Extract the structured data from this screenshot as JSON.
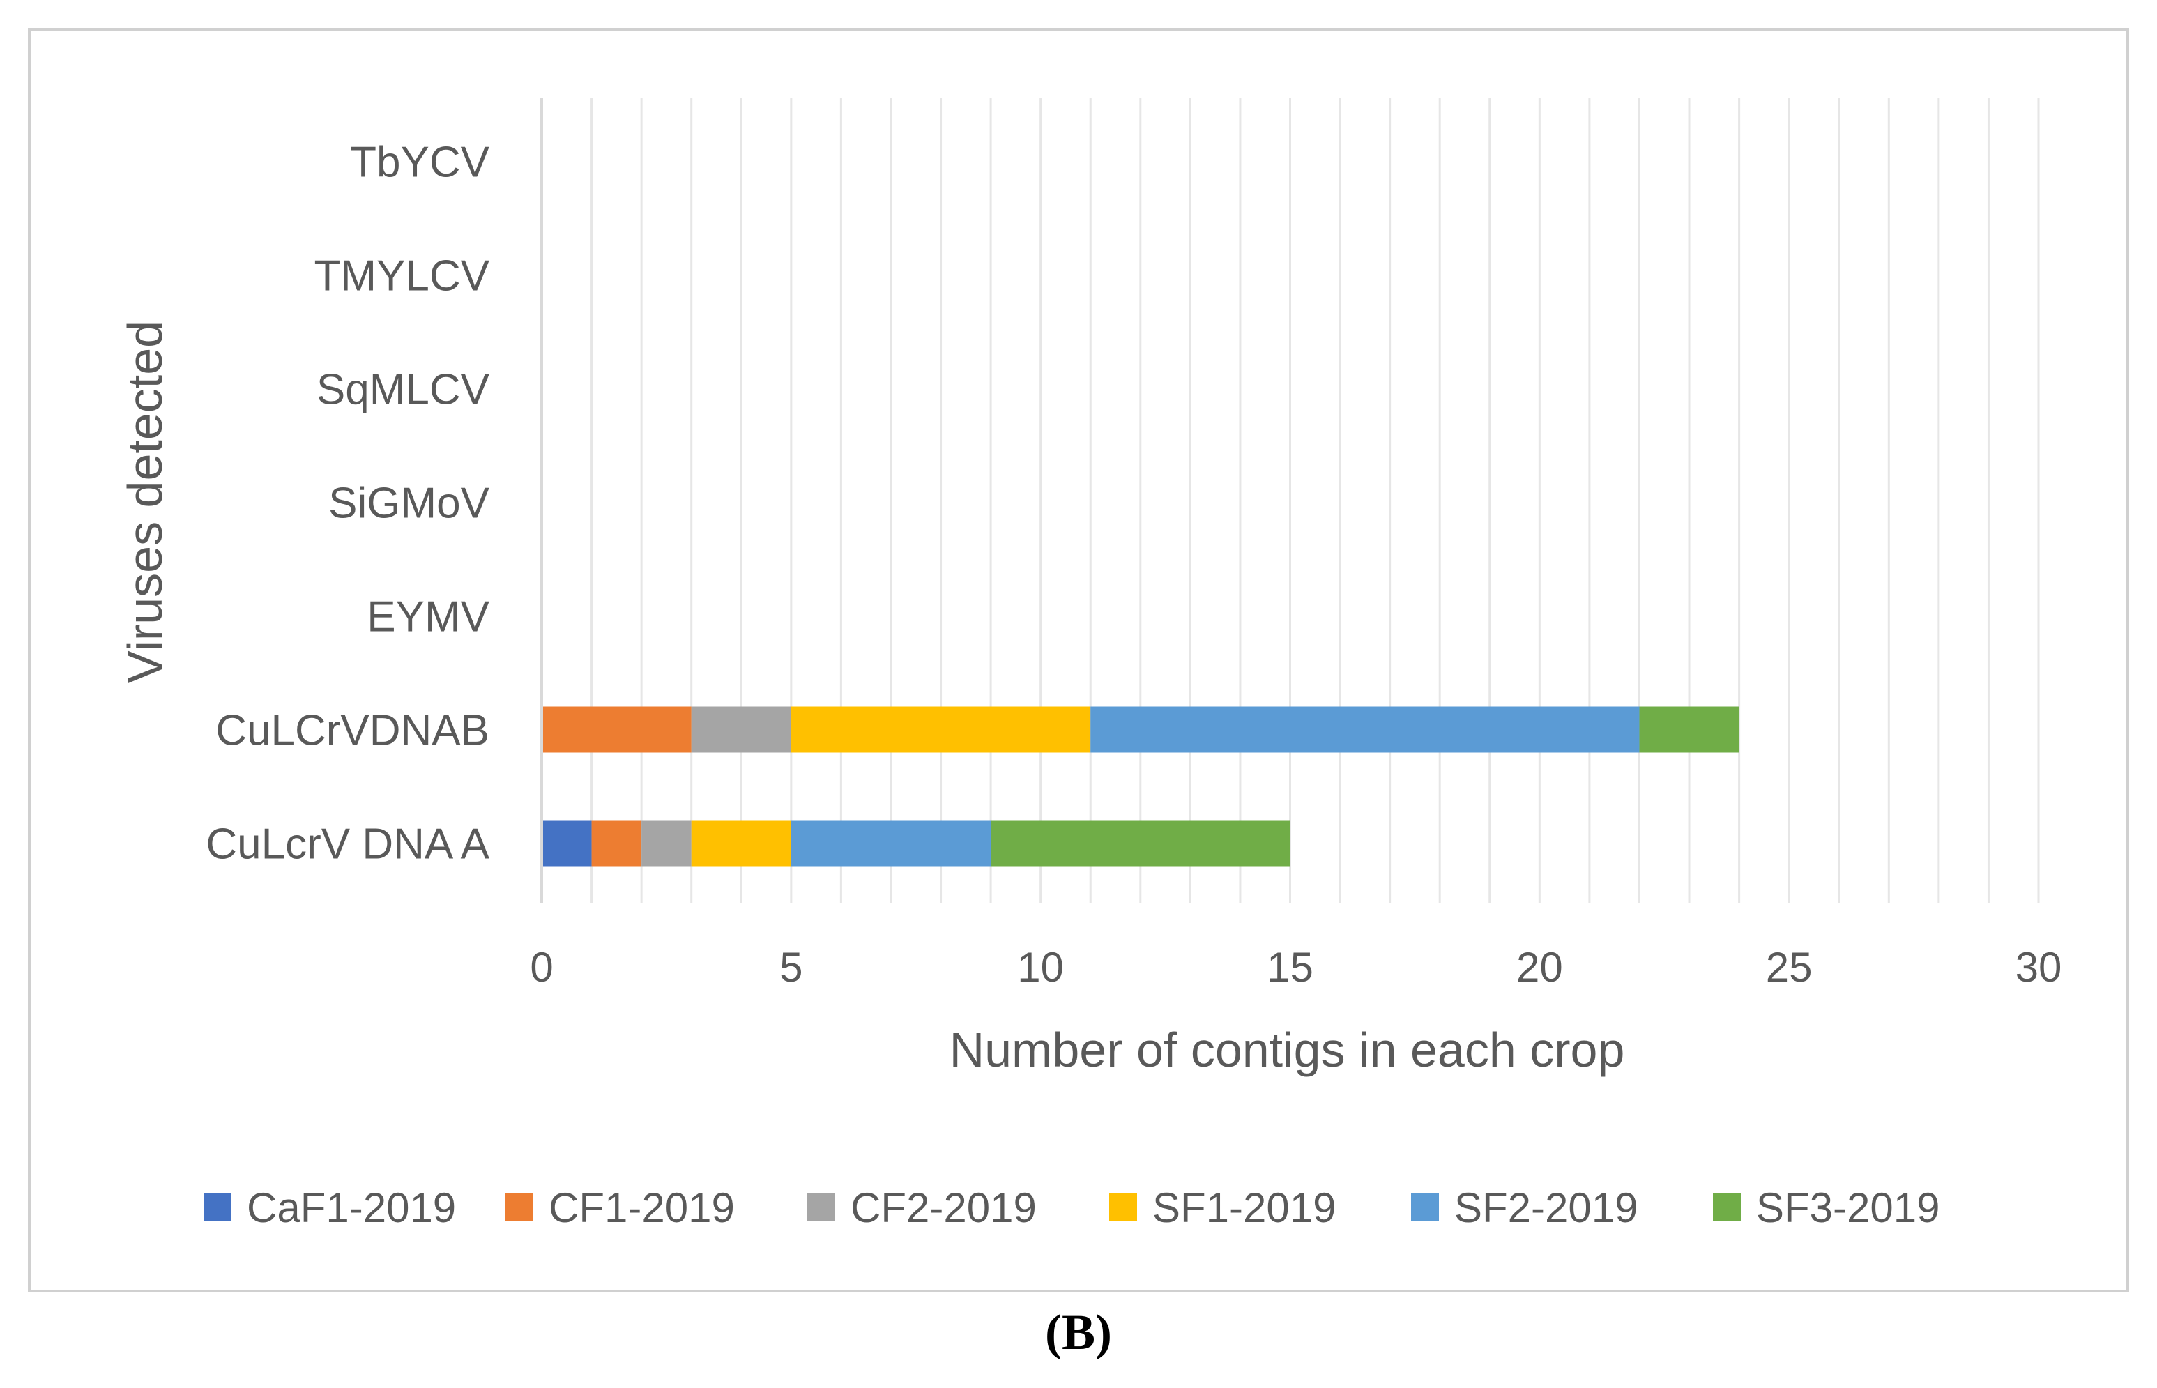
{
  "chart_data": {
    "type": "bar",
    "orientation": "horizontal",
    "stacked": true,
    "categories": [
      "CuLcrV DNA A",
      "CuLCrVDNAB",
      "EYMV",
      "SiGMoV",
      "SqMLCV",
      "TMYLCV",
      "TbYCV"
    ],
    "series": [
      {
        "name": "CaF1-2019",
        "color": "#4472C4",
        "values": [
          1,
          0,
          0,
          0,
          0,
          0,
          0
        ]
      },
      {
        "name": "CF1-2019",
        "color": "#ED7D31",
        "values": [
          1,
          3,
          0,
          0,
          0,
          0,
          0
        ]
      },
      {
        "name": "CF2-2019",
        "color": "#A5A5A5",
        "values": [
          1,
          2,
          0,
          0,
          0,
          0,
          0
        ]
      },
      {
        "name": "SF1-2019",
        "color": "#FFC000",
        "values": [
          2,
          6,
          0,
          0,
          0,
          0,
          0
        ]
      },
      {
        "name": "SF2-2019",
        "color": "#5B9BD5",
        "values": [
          4,
          11,
          0,
          0,
          0,
          0,
          0
        ]
      },
      {
        "name": "SF3-2019",
        "color": "#70AD47",
        "values": [
          6,
          2,
          0,
          0,
          0,
          0,
          0
        ]
      }
    ],
    "title": "",
    "xlabel": "Number of contigs in each crop",
    "ylabel": "Viruses detected",
    "xlim": [
      0,
      30
    ],
    "xticks": [
      "0",
      "5",
      "10",
      "15",
      "20",
      "25",
      "30"
    ],
    "grid": true,
    "legend_position": "bottom"
  },
  "panel_label": {
    "open": "(",
    "letter": "B",
    "close": ")"
  }
}
